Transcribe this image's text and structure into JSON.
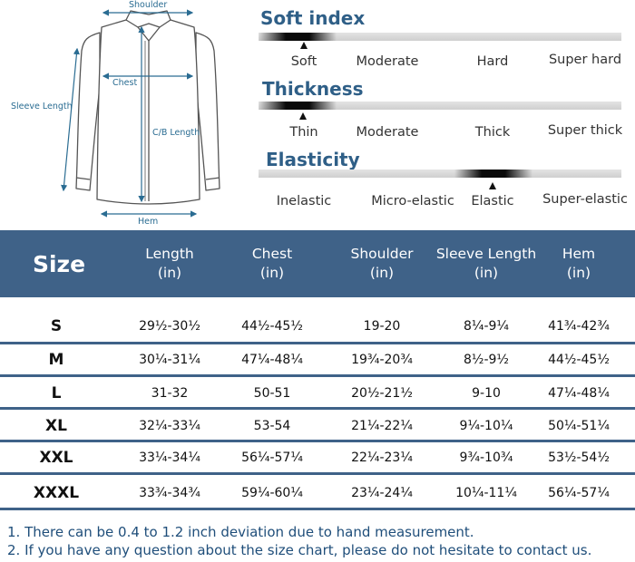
{
  "diagram": {
    "labels": {
      "shoulder": "Shoulder",
      "chest": "Chest",
      "sleeve_length": "Sleeve Length",
      "cb_length": "C/B Length",
      "hem": "Hem"
    }
  },
  "scales": [
    {
      "title": "Soft index",
      "options": [
        "Soft",
        "Moderate",
        "Hard",
        "Super hard"
      ],
      "selected_index": 0
    },
    {
      "title": "Thickness",
      "options": [
        "Thin",
        "Moderate",
        "Thick",
        "Super thick"
      ],
      "selected_index": 0
    },
    {
      "title": "Elasticity",
      "options": [
        "Inelastic",
        "Micro-elastic",
        "Elastic",
        "Super-elastic"
      ],
      "selected_index": 2
    }
  ],
  "size_table": {
    "headers": {
      "size": "Size",
      "length": [
        "Length",
        "(in)"
      ],
      "chest": [
        "Chest",
        "(in)"
      ],
      "shoulder": [
        "Shoulder",
        "(in)"
      ],
      "sleeve": [
        "Sleeve Length",
        "(in)"
      ],
      "hem": [
        "Hem",
        "(in)"
      ]
    },
    "rows": [
      [
        "S",
        "29½-30½",
        "44½-45½",
        "19-20",
        "8¼-9¼",
        "41¾-42¾"
      ],
      [
        "M",
        "30¼-31¼",
        "47¼-48¼",
        "19¾-20¾",
        "8½-9½",
        "44½-45½"
      ],
      [
        "L",
        "31-32",
        "50-51",
        "20½-21½",
        "9-10",
        "47¼-48¼"
      ],
      [
        "XL",
        "32¼-33¼",
        "53-54",
        "21¼-22¼",
        "9¼-10¼",
        "50¼-51¼"
      ],
      [
        "XXL",
        "33¼-34¼",
        "56¼-57¼",
        "22¼-23¼",
        "9¾-10¾",
        "53½-54½"
      ],
      [
        "XXXL",
        "33¾-34¾",
        "59¼-60¼",
        "23¼-24¼",
        "10¼-11¼",
        "56¼-57¼"
      ]
    ]
  },
  "notes": [
    "1. There can be 0.4 to 1.2 inch deviation due to hand measurement.",
    "2. If you have any question about the size chart, please do not hesitate to contact us."
  ],
  "colors": {
    "header_bg": "#3f6288",
    "title_blue": "#2f5f87",
    "note_blue": "#1f4e7a",
    "diagram_blue": "#2a6c92"
  }
}
